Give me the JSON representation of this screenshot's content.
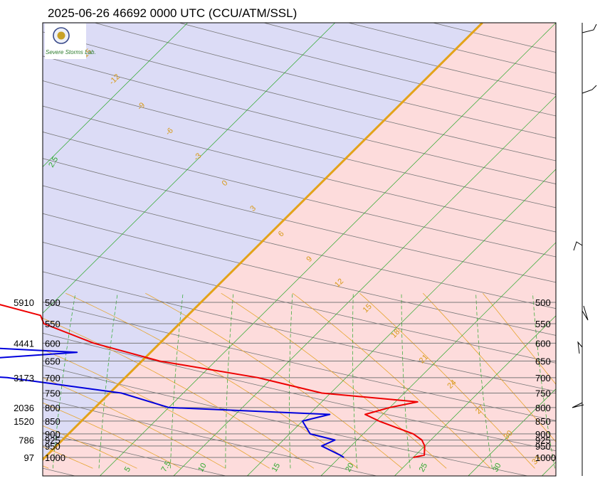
{
  "chart_data": {
    "type": "line",
    "title": "2025-06-26 46692 0000 UTC (CCU/ATM/SSL)",
    "logo": {
      "text": "Severe Storms Lab."
    },
    "colors": {
      "cold_region": "#dcdcf6",
      "warm_region": "#fddcdc",
      "zero_isotherm": "#e3a31a",
      "temperature": "#ee0000",
      "dewpoint": "#0000dd",
      "isobar": "#7a7a7a",
      "dry_adiabat": "#777777",
      "moist_adiabat": "#e6a52f",
      "mixing_ratio": "#2aa82a"
    },
    "pressure_levels": [
      "500",
      "550",
      "600",
      "650",
      "700",
      "750",
      "800",
      "850",
      "900",
      "925",
      "950",
      "1000"
    ],
    "pressure_values": [
      500,
      550,
      600,
      650,
      700,
      750,
      800,
      850,
      900,
      925,
      950,
      1000
    ],
    "height_labels": [
      {
        "p": 500,
        "text": "5910"
      },
      {
        "p": 600,
        "text": "4441"
      },
      {
        "p": 700,
        "text": "3173"
      },
      {
        "p": 800,
        "text": "2036"
      },
      {
        "p": 850,
        "text": "1520"
      },
      {
        "p": 925,
        "text": "786"
      },
      {
        "p": 1000,
        "text": "97"
      }
    ],
    "x_tick_values": [
      5,
      7.5,
      10,
      15,
      20,
      25,
      30
    ],
    "x_tick_labels": [
      "5",
      "7.5",
      "10",
      "15",
      "20",
      "25",
      "30"
    ],
    "moist_adiabat_labels": [
      "-15",
      "-12",
      "-9",
      "-6",
      "-3",
      "0",
      "3",
      "6",
      "9",
      "12",
      "15",
      "18",
      "21",
      "24",
      "27",
      "30",
      "33"
    ],
    "mixing_ratio_labels": [
      "2.5"
    ],
    "series": [
      {
        "name": "Temperature",
        "points": [
          [
            1000,
            25.0
          ],
          [
            990,
            25.6
          ],
          [
            950,
            25.0
          ],
          [
            925,
            24.4
          ],
          [
            900,
            23.4
          ],
          [
            850,
            20.2
          ],
          [
            825,
            18.8
          ],
          [
            800,
            20.0
          ],
          [
            780,
            21.5
          ],
          [
            750,
            14.4
          ],
          [
            700,
            9.0
          ],
          [
            650,
            1.2
          ],
          [
            600,
            -4.5
          ],
          [
            550,
            -9.2
          ],
          [
            530,
            -10.0
          ],
          [
            505,
            -13.5
          ]
        ]
      },
      {
        "name": "Dewpoint",
        "points": [
          [
            1000,
            20.3
          ],
          [
            990,
            19.9
          ],
          [
            950,
            18.0
          ],
          [
            925,
            18.5
          ],
          [
            900,
            16.4
          ],
          [
            850,
            15.0
          ],
          [
            825,
            16.4
          ],
          [
            800,
            5.0
          ],
          [
            750,
            0.8
          ],
          [
            700,
            -8.0
          ],
          [
            670,
            -19.0
          ],
          [
            625,
            -5.0
          ],
          [
            600,
            -18.0
          ],
          [
            550,
            -21.0
          ],
          [
            500,
            -60.0
          ]
        ]
      }
    ]
  }
}
